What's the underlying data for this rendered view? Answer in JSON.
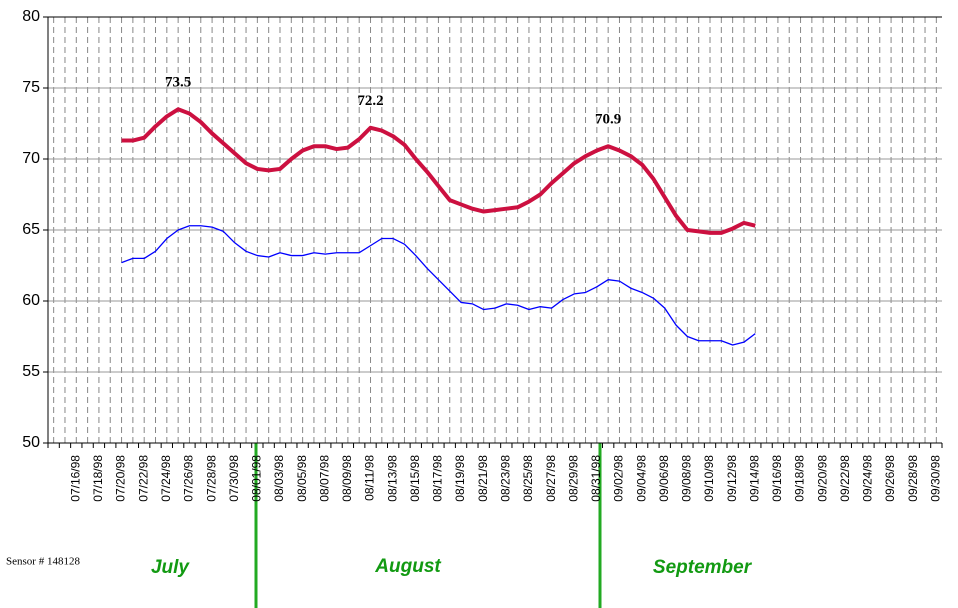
{
  "chart_data": {
    "type": "line",
    "categories": [
      null,
      null,
      "07/16/98",
      null,
      "07/18/98",
      null,
      "07/20/98",
      null,
      "07/22/98",
      null,
      "07/24/98",
      null,
      "07/26/98",
      null,
      "07/28/98",
      null,
      "07/30/98",
      null,
      "08/01/98",
      null,
      "08/03/98",
      null,
      "08/05/98",
      null,
      "08/07/98",
      null,
      "08/09/98",
      null,
      "08/11/98",
      null,
      "08/13/98",
      null,
      "08/15/98",
      null,
      "08/17/98",
      null,
      "08/19/98",
      null,
      "08/21/98",
      null,
      "08/23/98",
      null,
      "08/25/98",
      null,
      "08/27/98",
      null,
      "08/29/98",
      null,
      "08/31/98",
      null,
      "09/02/98",
      null,
      "09/04/98",
      null,
      "09/06/98",
      null,
      "09/08/98",
      null,
      "09/10/98",
      null,
      "09/12/98",
      null,
      "09/14/98",
      null,
      "09/16/98",
      null,
      "09/18/98",
      null,
      "09/20/98",
      null,
      "09/22/98",
      null,
      "09/24/98",
      null,
      "09/26/98",
      null,
      "09/28/98",
      null,
      "09/30/98"
    ],
    "series": [
      {
        "color": "#cc1040",
        "values": [
          null,
          null,
          null,
          null,
          null,
          null,
          71.3,
          71.3,
          71.5,
          72.3,
          73.0,
          73.5,
          73.2,
          72.6,
          71.8,
          71.1,
          70.4,
          69.7,
          69.3,
          69.2,
          69.3,
          70.0,
          70.6,
          70.9,
          70.9,
          70.7,
          70.8,
          71.4,
          72.2,
          72.0,
          71.6,
          71.0,
          70.0,
          69.1,
          68.1,
          67.1,
          66.8,
          66.5,
          66.3,
          66.4,
          66.5,
          66.6,
          67.0,
          67.5,
          68.3,
          69.0,
          69.7,
          70.2,
          70.6,
          70.9,
          70.6,
          70.2,
          69.6,
          68.6,
          67.3,
          66.0,
          65.0,
          64.9,
          64.8,
          64.8,
          65.1,
          65.5,
          65.3,
          null,
          null,
          null,
          null,
          null,
          null,
          null,
          null,
          null,
          null,
          null,
          null,
          null,
          null,
          null,
          null
        ],
        "value_labels": [
          null,
          null,
          null,
          null,
          null,
          null,
          null,
          null,
          null,
          null,
          null,
          "73.5",
          null,
          null,
          null,
          null,
          null,
          null,
          null,
          null,
          null,
          null,
          null,
          null,
          null,
          null,
          null,
          null,
          "72.2",
          null,
          null,
          null,
          null,
          null,
          null,
          null,
          null,
          null,
          null,
          null,
          null,
          null,
          null,
          null,
          null,
          null,
          null,
          null,
          null,
          "70.9",
          null,
          null,
          null,
          null,
          null,
          null,
          null,
          null,
          null,
          null,
          null,
          null,
          null,
          null,
          null,
          null,
          null,
          null,
          null,
          null,
          null,
          null,
          null,
          null,
          null,
          null,
          null,
          null,
          null
        ]
      },
      {
        "color": "#0000ff",
        "values": [
          null,
          null,
          null,
          null,
          null,
          null,
          62.7,
          63.0,
          63.0,
          63.5,
          64.4,
          65.0,
          65.3,
          65.3,
          65.2,
          64.9,
          64.1,
          63.5,
          63.2,
          63.1,
          63.4,
          63.2,
          63.2,
          63.4,
          63.3,
          63.4,
          63.4,
          63.4,
          63.9,
          64.4,
          64.4,
          64.0,
          63.2,
          62.3,
          61.5,
          60.7,
          59.9,
          59.8,
          59.4,
          59.5,
          59.8,
          59.7,
          59.4,
          59.6,
          59.5,
          60.1,
          60.5,
          60.6,
          61.0,
          61.5,
          61.4,
          60.9,
          60.6,
          60.2,
          59.5,
          58.3,
          57.5,
          57.2,
          57.2,
          57.2,
          56.9,
          57.1,
          57.7,
          null,
          null,
          null,
          null,
          null,
          null,
          null,
          null,
          null,
          null,
          null,
          null,
          null,
          null,
          null,
          null
        ]
      }
    ],
    "ylim": [
      50,
      80
    ],
    "yticks": [
      50,
      55,
      60,
      65,
      70,
      75,
      80
    ],
    "grid": true,
    "months": [
      "July",
      "August",
      "September"
    ],
    "sensor": "Sensor # 148128"
  }
}
